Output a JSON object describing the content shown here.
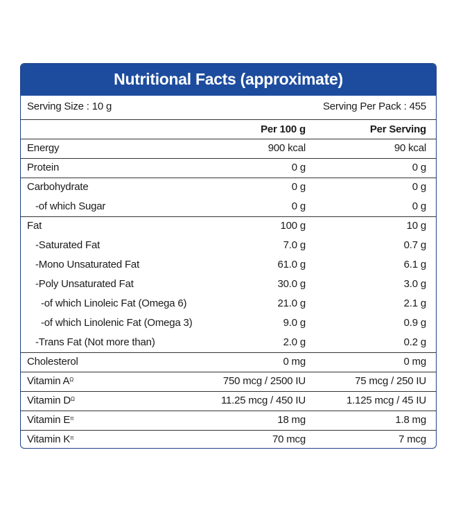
{
  "header": {
    "title": "Nutritional Facts (approximate)"
  },
  "serving": {
    "size": "Serving Size : 10 g",
    "per_pack": "Serving Per Pack : 455"
  },
  "columns": [
    "Per 100 g",
    "Per Serving"
  ],
  "rows": [
    {
      "label": "Energy",
      "values": [
        "900 kcal",
        "90 kcal"
      ]
    },
    {
      "label": "Protein",
      "values": [
        "0 g",
        "0 g"
      ]
    },
    {
      "label": "Carbohydrate",
      "values": [
        "0 g",
        "0 g"
      ]
    },
    {
      "label": "-of which Sugar",
      "values": [
        "0 g",
        "0 g"
      ]
    },
    {
      "label": "Fat",
      "values": [
        "100 g",
        "10 g"
      ]
    },
    {
      "label": "-Saturated Fat",
      "values": [
        "7.0 g",
        "0.7 g"
      ]
    },
    {
      "label": "-Mono Unsaturated Fat",
      "values": [
        "61.0 g",
        "6.1 g"
      ]
    },
    {
      "label": "-Poly Unsaturated Fat",
      "values": [
        "30.0 g",
        "3.0 g"
      ]
    },
    {
      "label": "-of which Linoleic Fat (Omega 6)",
      "values": [
        "21.0 g",
        "2.1 g"
      ]
    },
    {
      "label": "-of which Linolenic Fat (Omega 3)",
      "values": [
        "9.0 g",
        "0.9 g"
      ]
    },
    {
      "label": "-Trans Fat (Not more than)",
      "values": [
        "2.0 g",
        "0.2 g"
      ]
    },
    {
      "label": "Cholesterol",
      "values": [
        "0 mg",
        "0 mg"
      ]
    },
    {
      "label": "Vitamin A",
      "sup": "Ω",
      "values": [
        "750 mcg / 2500 IU",
        "75 mcg / 250 IU"
      ]
    },
    {
      "label": "Vitamin D",
      "sup": "Ω",
      "values": [
        "11.25 mcg / 450 IU",
        "1.125 mcg / 45 IU"
      ]
    },
    {
      "label": "Vitamin E",
      "sup": "π",
      "values": [
        "18 mg",
        "1.8 mg"
      ]
    },
    {
      "label": "Vitamin K",
      "sup": "π",
      "values": [
        "70 mcg",
        "7 mcg"
      ]
    }
  ]
}
